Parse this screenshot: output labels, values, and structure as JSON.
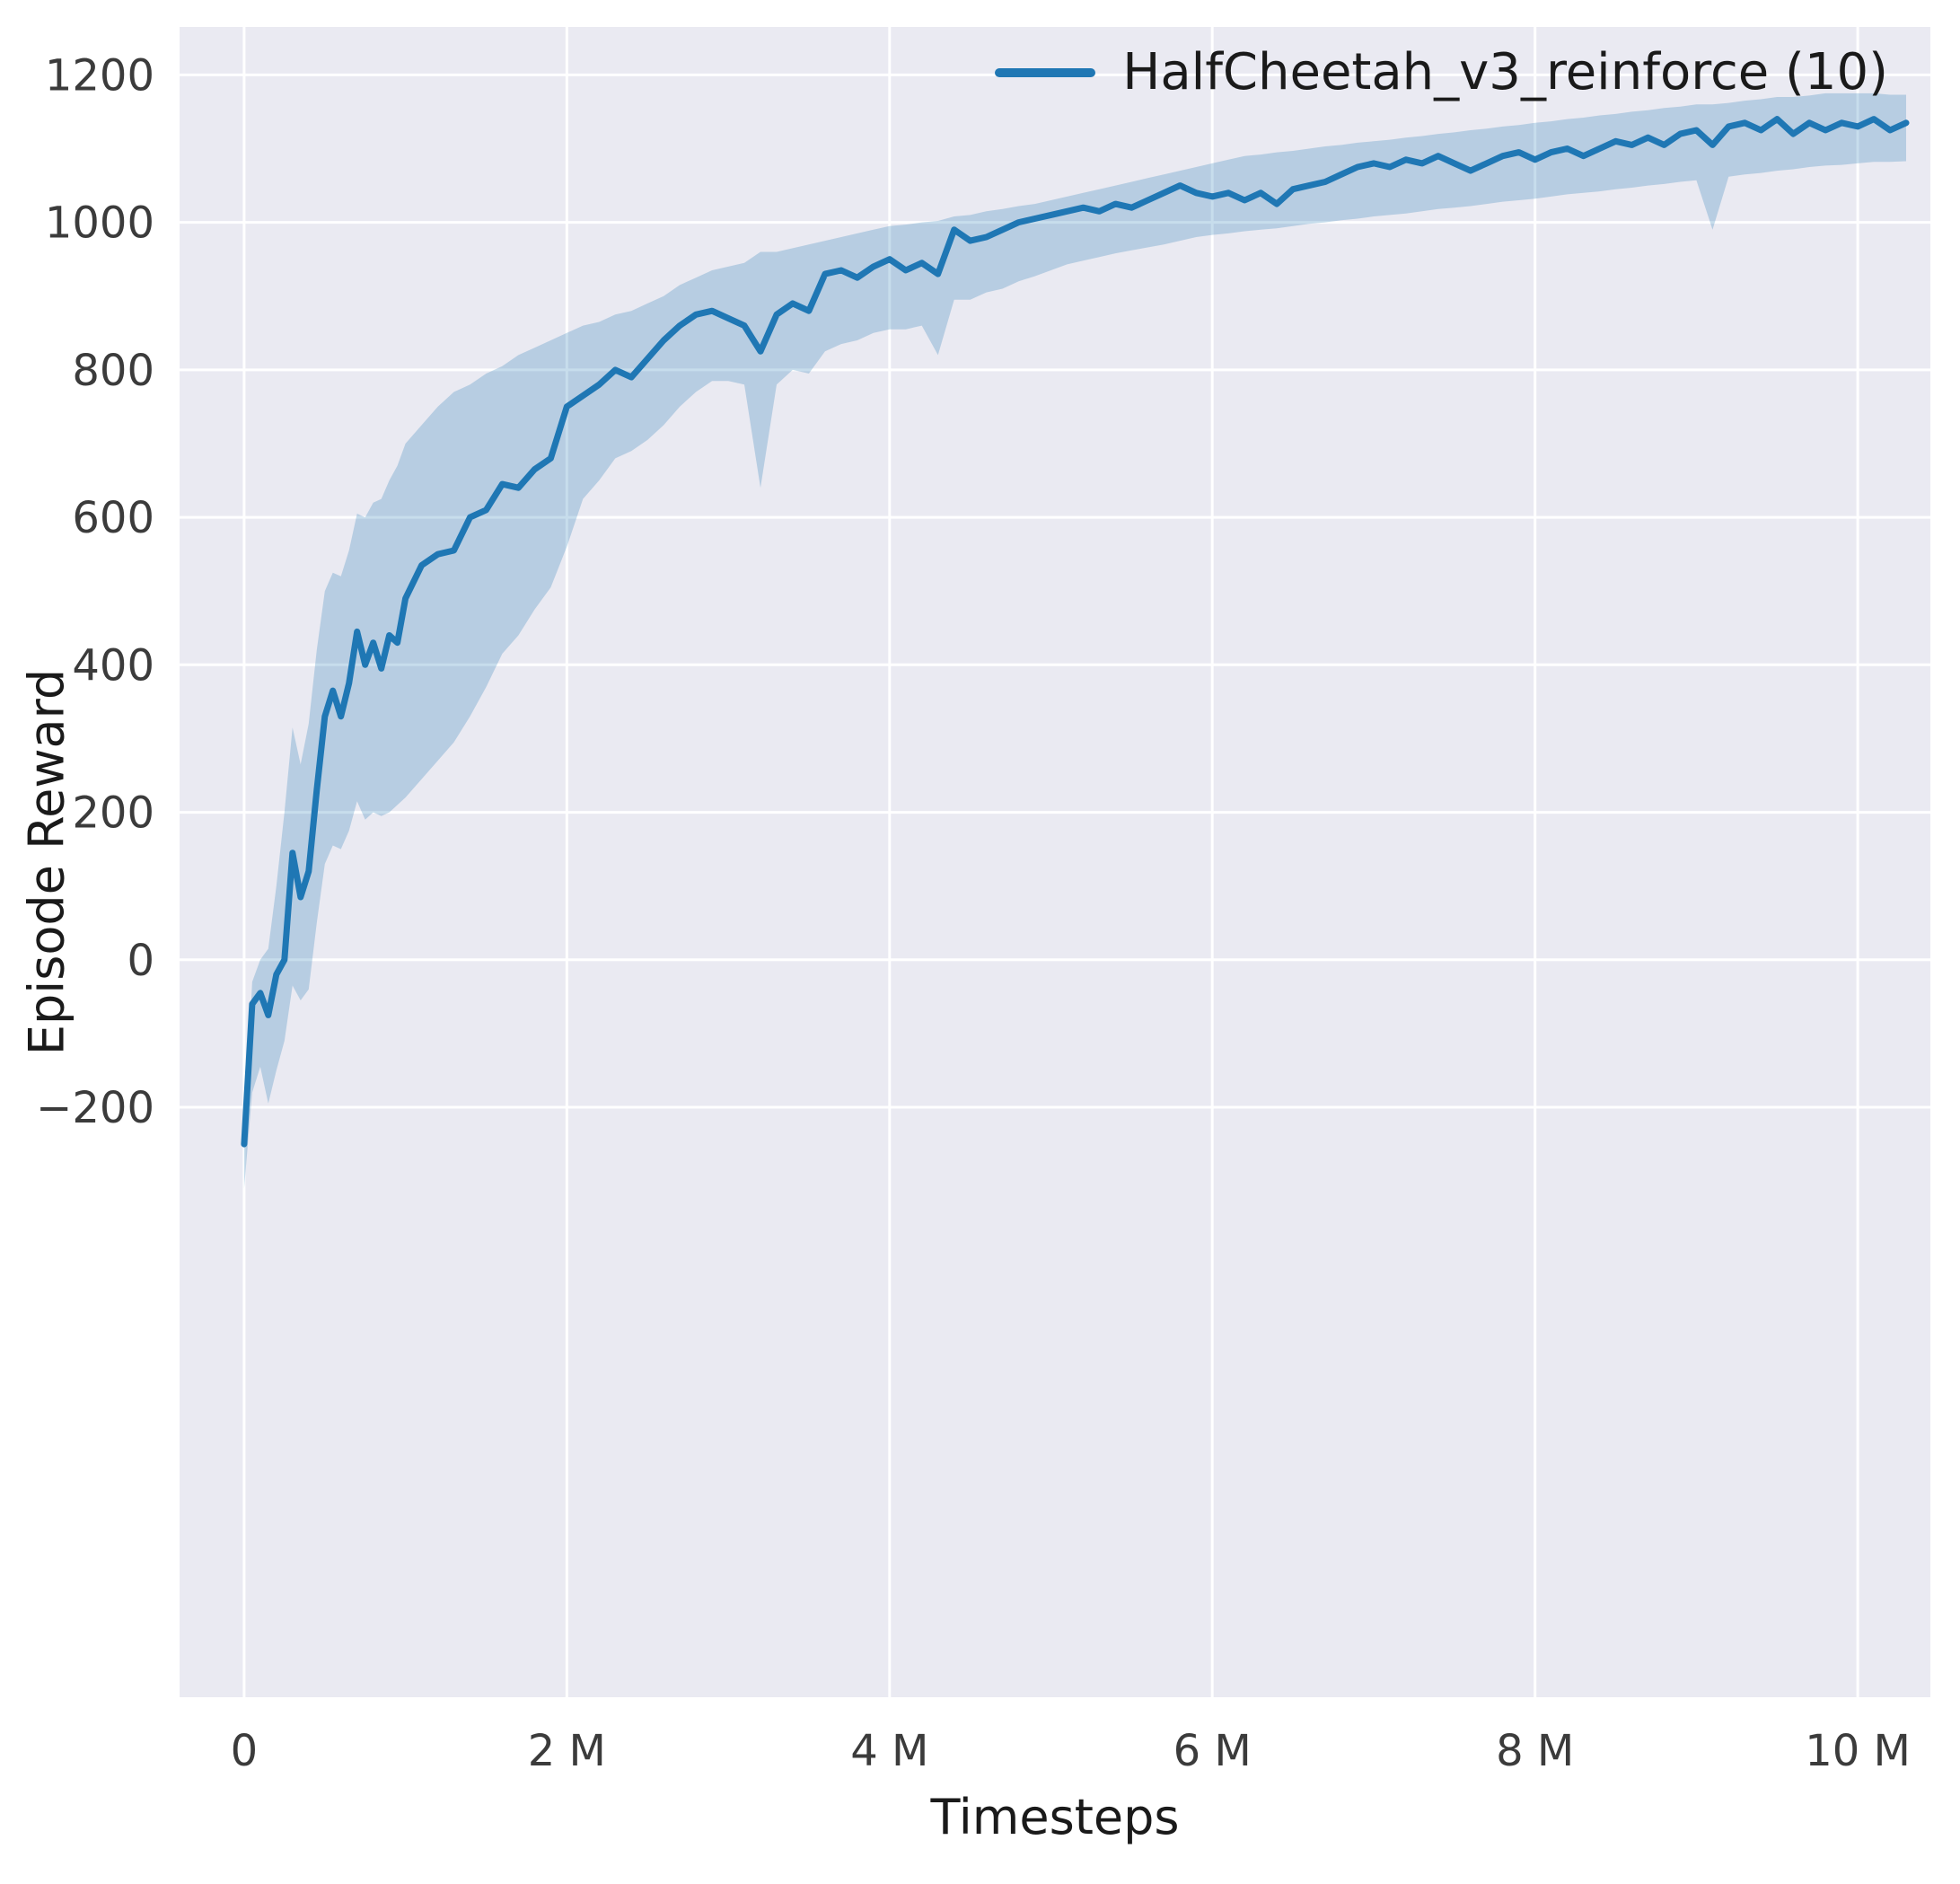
{
  "chart_data": {
    "type": "line",
    "title": "",
    "xlabel": "Timesteps",
    "ylabel": "Episode Reward",
    "legend": {
      "label": "HalfCheetah_v3_reinforce (10)",
      "position": "upper right"
    },
    "xlim": [
      -0.4,
      10.45
    ],
    "ylim": [
      -1000,
      1265
    ],
    "x_unit": "millions of timesteps",
    "grid": true,
    "xticks": {
      "values": [
        0,
        2,
        4,
        6,
        8,
        10
      ],
      "labels": [
        "0",
        "2 M",
        "4 M",
        "6 M",
        "8 M",
        "10 M"
      ]
    },
    "yticks": {
      "values": [
        -200,
        0,
        200,
        400,
        600,
        800,
        1000,
        1200
      ],
      "labels": [
        "−200",
        "0",
        "200",
        "400",
        "600",
        "800",
        "1000",
        "1200"
      ]
    },
    "colors": {
      "line": "#1f77b4",
      "band": "rgba(31,119,180,0.25)",
      "axes_bg": "#eaeaf2",
      "grid": "#ffffff",
      "tick_text": "#3b3b3b",
      "label_text": "#1a1a1a"
    },
    "series": [
      {
        "name": "HalfCheetah_v3_reinforce (10)",
        "x": [
          0,
          0.05,
          0.1,
          0.15,
          0.2,
          0.25,
          0.3,
          0.35,
          0.4,
          0.45,
          0.5,
          0.55,
          0.6,
          0.65,
          0.7,
          0.75,
          0.8,
          0.85,
          0.9,
          0.95,
          1.0,
          1.1,
          1.2,
          1.3,
          1.4,
          1.5,
          1.6,
          1.7,
          1.8,
          1.9,
          2.0,
          2.1,
          2.2,
          2.3,
          2.4,
          2.5,
          2.6,
          2.7,
          2.8,
          2.9,
          3.0,
          3.1,
          3.2,
          3.3,
          3.4,
          3.5,
          3.6,
          3.7,
          3.8,
          3.9,
          4.0,
          4.1,
          4.2,
          4.3,
          4.4,
          4.5,
          4.6,
          4.7,
          4.8,
          4.9,
          5.0,
          5.1,
          5.2,
          5.3,
          5.4,
          5.5,
          5.6,
          5.7,
          5.8,
          5.9,
          6.0,
          6.1,
          6.2,
          6.3,
          6.4,
          6.5,
          6.6,
          6.7,
          6.8,
          6.9,
          7.0,
          7.1,
          7.2,
          7.3,
          7.4,
          7.5,
          7.6,
          7.7,
          7.8,
          7.9,
          8.0,
          8.1,
          8.2,
          8.3,
          8.4,
          8.5,
          8.6,
          8.7,
          8.8,
          8.9,
          9.0,
          9.1,
          9.2,
          9.3,
          9.4,
          9.5,
          9.6,
          9.7,
          9.8,
          9.9,
          10.0,
          10.1,
          10.2,
          10.3
        ],
        "mean": [
          -250,
          -60,
          -45,
          -75,
          -20,
          0,
          145,
          85,
          120,
          230,
          330,
          365,
          330,
          375,
          445,
          400,
          430,
          395,
          440,
          430,
          490,
          535,
          550,
          555,
          600,
          610,
          645,
          640,
          665,
          680,
          750,
          765,
          780,
          800,
          790,
          815,
          840,
          860,
          875,
          880,
          870,
          860,
          825,
          875,
          890,
          880,
          930,
          935,
          925,
          940,
          950,
          935,
          945,
          930,
          990,
          975,
          980,
          990,
          1000,
          1005,
          1010,
          1015,
          1020,
          1015,
          1025,
          1020,
          1030,
          1040,
          1050,
          1040,
          1035,
          1040,
          1030,
          1040,
          1025,
          1045,
          1050,
          1055,
          1065,
          1075,
          1080,
          1075,
          1085,
          1080,
          1090,
          1080,
          1070,
          1080,
          1090,
          1095,
          1085,
          1095,
          1100,
          1090,
          1100,
          1110,
          1105,
          1115,
          1105,
          1120,
          1125,
          1105,
          1130,
          1135,
          1125,
          1140,
          1120,
          1135,
          1125,
          1135,
          1130,
          1140,
          1125,
          1135
        ],
        "lower": [
          -310,
          -180,
          -145,
          -195,
          -150,
          -110,
          -35,
          -55,
          -40,
          50,
          130,
          155,
          150,
          175,
          215,
          190,
          200,
          195,
          200,
          210,
          220,
          245,
          270,
          295,
          330,
          370,
          415,
          440,
          475,
          505,
          560,
          625,
          650,
          680,
          690,
          705,
          725,
          750,
          770,
          785,
          785,
          780,
          640,
          780,
          800,
          795,
          825,
          835,
          840,
          850,
          855,
          855,
          860,
          820,
          895,
          895,
          905,
          910,
          920,
          927,
          935,
          943,
          948,
          953,
          958,
          962,
          966,
          970,
          975,
          980,
          983,
          985,
          988,
          990,
          992,
          995,
          998,
          1000,
          1003,
          1005,
          1008,
          1010,
          1012,
          1015,
          1018,
          1020,
          1022,
          1025,
          1028,
          1030,
          1032,
          1035,
          1038,
          1040,
          1042,
          1045,
          1047,
          1050,
          1052,
          1055,
          1057,
          990,
          1062,
          1065,
          1067,
          1070,
          1072,
          1075,
          1077,
          1078,
          1080,
          1082,
          1082,
          1083
        ],
        "upper": [
          -240,
          -30,
          0,
          15,
          100,
          200,
          315,
          265,
          320,
          420,
          500,
          525,
          520,
          555,
          605,
          600,
          620,
          625,
          650,
          670,
          700,
          725,
          750,
          770,
          780,
          795,
          805,
          820,
          830,
          840,
          850,
          860,
          865,
          875,
          880,
          890,
          900,
          915,
          925,
          935,
          940,
          945,
          960,
          960,
          965,
          970,
          975,
          980,
          985,
          990,
          995,
          997,
          1000,
          1002,
          1008,
          1010,
          1015,
          1018,
          1022,
          1025,
          1030,
          1035,
          1040,
          1045,
          1050,
          1055,
          1060,
          1065,
          1070,
          1075,
          1080,
          1085,
          1090,
          1092,
          1095,
          1097,
          1100,
          1103,
          1105,
          1108,
          1110,
          1112,
          1115,
          1117,
          1120,
          1122,
          1125,
          1127,
          1130,
          1132,
          1135,
          1137,
          1140,
          1142,
          1145,
          1147,
          1150,
          1152,
          1155,
          1157,
          1160,
          1160,
          1162,
          1165,
          1167,
          1170,
          1170,
          1172,
          1175,
          1175,
          1175,
          1175,
          1173,
          1173
        ]
      }
    ]
  }
}
